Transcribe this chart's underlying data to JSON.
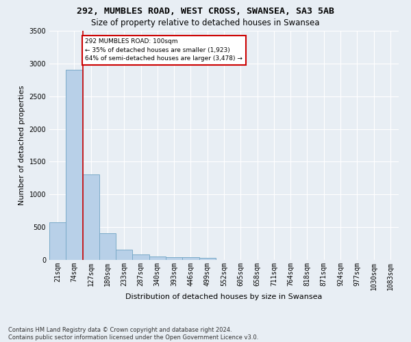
{
  "title_line1": "292, MUMBLES ROAD, WEST CROSS, SWANSEA, SA3 5AB",
  "title_line2": "Size of property relative to detached houses in Swansea",
  "xlabel": "Distribution of detached houses by size in Swansea",
  "ylabel": "Number of detached properties",
  "footnote": "Contains HM Land Registry data © Crown copyright and database right 2024.\nContains public sector information licensed under the Open Government Licence v3.0.",
  "bin_labels": [
    "21sqm",
    "74sqm",
    "127sqm",
    "180sqm",
    "233sqm",
    "287sqm",
    "340sqm",
    "393sqm",
    "446sqm",
    "499sqm",
    "552sqm",
    "605sqm",
    "658sqm",
    "711sqm",
    "764sqm",
    "818sqm",
    "871sqm",
    "924sqm",
    "977sqm",
    "1030sqm",
    "1083sqm"
  ],
  "bar_values": [
    570,
    2900,
    1310,
    410,
    155,
    80,
    55,
    45,
    40,
    35,
    0,
    0,
    0,
    0,
    0,
    0,
    0,
    0,
    0,
    0,
    0
  ],
  "bar_color": "#b8d0e8",
  "bar_edge_color": "#7aaac8",
  "property_label": "292 MUMBLES ROAD: 100sqm",
  "smaller_pct": "35% of detached houses are smaller (1,923)",
  "larger_pct": "64% of semi-detached houses are larger (3,478)",
  "annotation_box_color": "#cc0000",
  "vline_color": "#cc0000",
  "ylim": [
    0,
    3500
  ],
  "background_color": "#e8eef4",
  "grid_color": "#ffffff",
  "title_fontsize": 9.5,
  "subtitle_fontsize": 8.5,
  "axis_label_fontsize": 8,
  "tick_fontsize": 7,
  "footnote_fontsize": 6
}
